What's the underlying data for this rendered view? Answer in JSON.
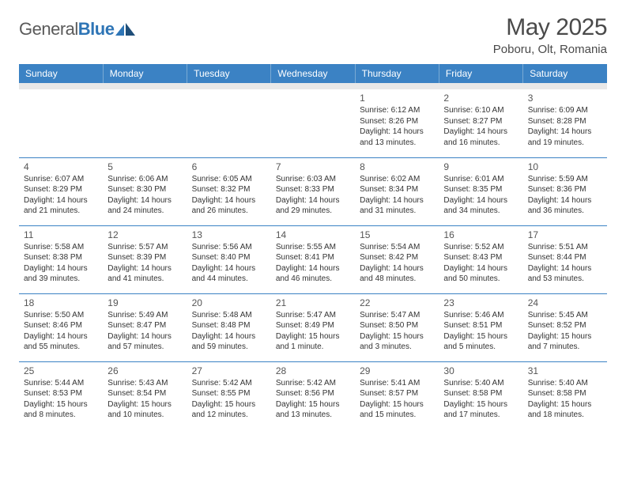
{
  "logo": {
    "text_a": "General",
    "text_b": "Blue"
  },
  "title": "May 2025",
  "location": "Poboru, Olt, Romania",
  "colors": {
    "header_bg": "#3b82c4",
    "header_text": "#ffffff",
    "subheader_bg": "#e8e8e8",
    "cell_border": "#3b82c4",
    "text": "#333333",
    "logo_gray": "#5a5a5a",
    "logo_blue": "#2e75b6"
  },
  "day_names": [
    "Sunday",
    "Monday",
    "Tuesday",
    "Wednesday",
    "Thursday",
    "Friday",
    "Saturday"
  ],
  "weeks": [
    [
      null,
      null,
      null,
      null,
      {
        "n": "1",
        "sr": "6:12 AM",
        "ss": "8:26 PM",
        "dl": "14 hours and 13 minutes."
      },
      {
        "n": "2",
        "sr": "6:10 AM",
        "ss": "8:27 PM",
        "dl": "14 hours and 16 minutes."
      },
      {
        "n": "3",
        "sr": "6:09 AM",
        "ss": "8:28 PM",
        "dl": "14 hours and 19 minutes."
      }
    ],
    [
      {
        "n": "4",
        "sr": "6:07 AM",
        "ss": "8:29 PM",
        "dl": "14 hours and 21 minutes."
      },
      {
        "n": "5",
        "sr": "6:06 AM",
        "ss": "8:30 PM",
        "dl": "14 hours and 24 minutes."
      },
      {
        "n": "6",
        "sr": "6:05 AM",
        "ss": "8:32 PM",
        "dl": "14 hours and 26 minutes."
      },
      {
        "n": "7",
        "sr": "6:03 AM",
        "ss": "8:33 PM",
        "dl": "14 hours and 29 minutes."
      },
      {
        "n": "8",
        "sr": "6:02 AM",
        "ss": "8:34 PM",
        "dl": "14 hours and 31 minutes."
      },
      {
        "n": "9",
        "sr": "6:01 AM",
        "ss": "8:35 PM",
        "dl": "14 hours and 34 minutes."
      },
      {
        "n": "10",
        "sr": "5:59 AM",
        "ss": "8:36 PM",
        "dl": "14 hours and 36 minutes."
      }
    ],
    [
      {
        "n": "11",
        "sr": "5:58 AM",
        "ss": "8:38 PM",
        "dl": "14 hours and 39 minutes."
      },
      {
        "n": "12",
        "sr": "5:57 AM",
        "ss": "8:39 PM",
        "dl": "14 hours and 41 minutes."
      },
      {
        "n": "13",
        "sr": "5:56 AM",
        "ss": "8:40 PM",
        "dl": "14 hours and 44 minutes."
      },
      {
        "n": "14",
        "sr": "5:55 AM",
        "ss": "8:41 PM",
        "dl": "14 hours and 46 minutes."
      },
      {
        "n": "15",
        "sr": "5:54 AM",
        "ss": "8:42 PM",
        "dl": "14 hours and 48 minutes."
      },
      {
        "n": "16",
        "sr": "5:52 AM",
        "ss": "8:43 PM",
        "dl": "14 hours and 50 minutes."
      },
      {
        "n": "17",
        "sr": "5:51 AM",
        "ss": "8:44 PM",
        "dl": "14 hours and 53 minutes."
      }
    ],
    [
      {
        "n": "18",
        "sr": "5:50 AM",
        "ss": "8:46 PM",
        "dl": "14 hours and 55 minutes."
      },
      {
        "n": "19",
        "sr": "5:49 AM",
        "ss": "8:47 PM",
        "dl": "14 hours and 57 minutes."
      },
      {
        "n": "20",
        "sr": "5:48 AM",
        "ss": "8:48 PM",
        "dl": "14 hours and 59 minutes."
      },
      {
        "n": "21",
        "sr": "5:47 AM",
        "ss": "8:49 PM",
        "dl": "15 hours and 1 minute."
      },
      {
        "n": "22",
        "sr": "5:47 AM",
        "ss": "8:50 PM",
        "dl": "15 hours and 3 minutes."
      },
      {
        "n": "23",
        "sr": "5:46 AM",
        "ss": "8:51 PM",
        "dl": "15 hours and 5 minutes."
      },
      {
        "n": "24",
        "sr": "5:45 AM",
        "ss": "8:52 PM",
        "dl": "15 hours and 7 minutes."
      }
    ],
    [
      {
        "n": "25",
        "sr": "5:44 AM",
        "ss": "8:53 PM",
        "dl": "15 hours and 8 minutes."
      },
      {
        "n": "26",
        "sr": "5:43 AM",
        "ss": "8:54 PM",
        "dl": "15 hours and 10 minutes."
      },
      {
        "n": "27",
        "sr": "5:42 AM",
        "ss": "8:55 PM",
        "dl": "15 hours and 12 minutes."
      },
      {
        "n": "28",
        "sr": "5:42 AM",
        "ss": "8:56 PM",
        "dl": "15 hours and 13 minutes."
      },
      {
        "n": "29",
        "sr": "5:41 AM",
        "ss": "8:57 PM",
        "dl": "15 hours and 15 minutes."
      },
      {
        "n": "30",
        "sr": "5:40 AM",
        "ss": "8:58 PM",
        "dl": "15 hours and 17 minutes."
      },
      {
        "n": "31",
        "sr": "5:40 AM",
        "ss": "8:58 PM",
        "dl": "15 hours and 18 minutes."
      }
    ]
  ],
  "labels": {
    "sunrise": "Sunrise: ",
    "sunset": "Sunset: ",
    "daylight": "Daylight: "
  }
}
